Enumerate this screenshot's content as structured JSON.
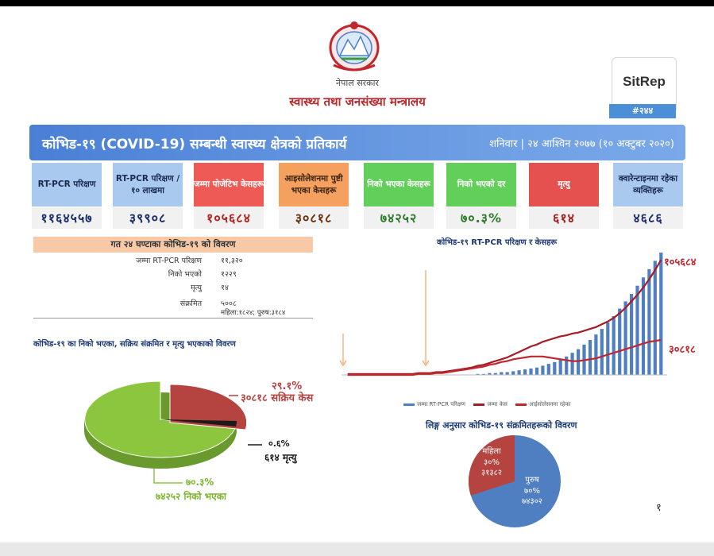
{
  "header": {
    "government": "नेपाल सरकार",
    "ministry": "स्वास्थ्य तथा जनसंख्या मन्त्रालय",
    "sitrep_title": "SitRep",
    "sitrep_number": "#२४४"
  },
  "banner": {
    "title": "कोभिड-१९ (COVID-19) सम्बन्धी स्वास्थ्य क्षेत्रको प्रतिकार्य",
    "date": "शनिवार | २४ आश्विन २०७७ (१० अक्टुबर २०२०)"
  },
  "cards": [
    {
      "label": "RT-PCR परिक्षण",
      "value": "११६४५५७",
      "color": "blue"
    },
    {
      "label": "RT-PCR परिक्षण /१० लाखमा",
      "value": "३९९०८",
      "color": "blue"
    },
    {
      "label": "जम्मा पोजेटिभ केसहरू",
      "value": "१०५६८४",
      "color": "red"
    },
    {
      "label": "आइसोलेशनमा पुष्टी भएका केसहरू",
      "value": "३०८१८",
      "color": "orange"
    },
    {
      "label": "निको भएका केसहरू",
      "value": "७४२५२",
      "color": "green"
    },
    {
      "label": "निको भएको दर",
      "value": "७०.३%",
      "color": "green"
    },
    {
      "label": "मृत्यु",
      "value": "६१४",
      "color": "dred"
    },
    {
      "label": "क्वारेन्टाइनमा रहेका व्यक्तिहरू",
      "value": "४६८६",
      "color": "blue"
    }
  ],
  "last24": {
    "title": "गत २४ घण्टाका कोभिड-१९ को विवरण",
    "rows": [
      {
        "label": "जम्मा RT-PCR परिक्षण",
        "value": "११,३२०"
      },
      {
        "label": "निको भएको",
        "value": "१२२९"
      },
      {
        "label": "मृत्यु",
        "value": "१४"
      },
      {
        "label": "संक्रमित",
        "value": "५००८"
      }
    ],
    "infected_breakdown": "महिला:१८२४; पुरुष:३१८४"
  },
  "status_pie": {
    "title": "कोभिड-१९ का निको भएका, सक्रिय संक्रमित र मृत्यु भएकाको विवरण",
    "active_pct": "२९.१%",
    "active_label": "३०८१८ सक्रिय केस",
    "death_pct": "०.६%",
    "death_label": "६१४ मृत्यु",
    "recovered_pct": "७०.३%",
    "recovered_label": "७४२५२ निको भएका",
    "colors": {
      "recovered": "#8cc63f",
      "active": "#b5433f",
      "death": "#1a1a1a"
    }
  },
  "line_chart": {
    "title": "कोभिड-१९ RT-PCR परिक्षण र केसहरू",
    "peak_total_label": "१०५६८४",
    "peak_active_label": "३०८१८",
    "legend": [
      "जम्मा RT-PCR परिक्षण",
      "जम्मा केस",
      "आईसोलेसनमा रहेका"
    ]
  },
  "chart_data": [
    {
      "type": "pie",
      "categories": [
        "निको भएका",
        "सक्रिय संक्रमित",
        "मृत्यु"
      ],
      "values": [
        74252,
        30818,
        614
      ],
      "percent": [
        70.3,
        29.1,
        0.6
      ]
    },
    {
      "type": "bar",
      "title": "कोभिड-१९ RT-PCR परिक्षण र केसहरू",
      "series": [
        {
          "name": "जम्मा RT-PCR परिक्षण",
          "type": "bar",
          "values": [
            0,
            0,
            0,
            0,
            0,
            0,
            0,
            0,
            0,
            0,
            0,
            0,
            0,
            0,
            0,
            0,
            0,
            0,
            0,
            0,
            0,
            0,
            1,
            1,
            2,
            2,
            3,
            3,
            4,
            5,
            6,
            7,
            8,
            10,
            12,
            14,
            17,
            20,
            24,
            28,
            33,
            38,
            44,
            50,
            57,
            64,
            72,
            80,
            88,
            97,
            106,
            115,
            124,
            133
          ]
        },
        {
          "name": "जम्मा केस",
          "type": "line",
          "values": [
            1,
            1,
            1,
            1,
            1,
            1,
            1,
            1,
            1,
            1,
            1,
            1,
            2,
            2,
            2,
            3,
            3,
            4,
            5,
            6,
            7,
            8,
            10,
            11,
            13,
            15,
            17,
            19,
            22,
            25,
            28,
            31,
            33,
            36,
            38,
            40,
            42,
            43,
            45,
            46,
            48,
            50,
            52,
            55,
            58,
            62,
            67,
            73,
            80,
            87,
            95,
            104,
            114,
            125
          ]
        },
        {
          "name": "आईसोलेसनमा रहेका",
          "type": "line",
          "values": [
            0,
            0,
            0,
            0,
            0,
            0,
            0,
            0,
            0,
            0,
            0,
            0,
            1,
            1,
            1,
            2,
            2,
            3,
            4,
            5,
            6,
            7,
            8,
            9,
            11,
            12,
            14,
            15,
            17,
            18,
            19,
            20,
            20,
            20,
            19,
            18,
            17,
            16,
            15,
            15,
            16,
            17,
            18,
            20,
            22,
            24,
            26,
            28,
            30,
            32,
            34,
            36,
            37,
            38
          ]
        }
      ],
      "peak_labels": {
        "total_cases": 105684,
        "active": 30818
      }
    },
    {
      "type": "pie",
      "title": "लिङ्ग अनुसार कोभिड-१९ संक्रमितहरूको विवरण",
      "categories": [
        "महिला",
        "पुरुष"
      ],
      "values": [
        31382,
        74302
      ],
      "percent": [
        30,
        70
      ]
    }
  ],
  "gender_pie": {
    "title": "लिङ्ग अनुसार कोभिड-१९ संक्रमितहरूको विवरण",
    "female_label": "महिला",
    "female_pct": "३०%",
    "female_count": "३१३८२",
    "male_label": "पुरुष",
    "male_pct": "७०%",
    "male_count": "७४३०२",
    "colors": {
      "male": "#4f7fc1",
      "female": "#b5433f"
    }
  },
  "page_number": "१"
}
